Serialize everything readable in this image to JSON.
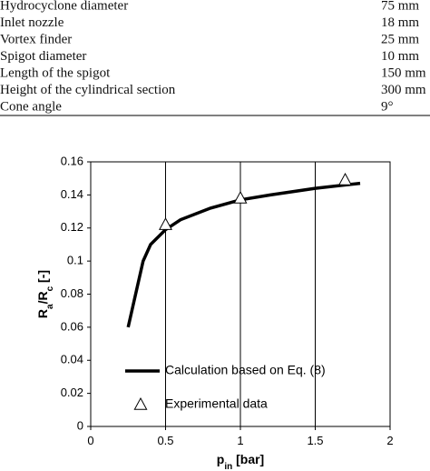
{
  "table": {
    "rows": [
      [
        "Hydrocyclone diameter",
        "75 mm"
      ],
      [
        "Inlet nozzle",
        "18 mm"
      ],
      [
        "Vortex finder",
        "25 mm"
      ],
      [
        "Spigot diameter",
        "10 mm"
      ],
      [
        "Length of the spigot",
        "150 mm"
      ],
      [
        "Height of the cylindrical section",
        "300 mm"
      ],
      [
        "Cone angle",
        "9°"
      ]
    ]
  },
  "chart_data": {
    "type": "line",
    "x_label": [
      "p",
      "in",
      " [bar]"
    ],
    "y_label": [
      "R",
      "a",
      "/R",
      "c",
      " [-]"
    ],
    "xlim": [
      0,
      2
    ],
    "xticks": [
      0,
      0.5,
      1,
      1.5,
      2
    ],
    "ylim": [
      0,
      0.16
    ],
    "yticks": [
      0,
      0.02,
      0.04,
      0.06,
      0.08,
      0.1,
      0.12,
      0.14,
      0.16
    ],
    "grid": "x",
    "legend": "lower left",
    "series": [
      {
        "name": "Calculation based on Eq. (8)",
        "color": "#000000",
        "style": "line",
        "x": [
          0.25,
          0.3,
          0.35,
          0.4,
          0.5,
          0.6,
          0.8,
          1,
          1.2,
          1.5,
          1.8
        ],
        "y": [
          0.06,
          0.08,
          0.1,
          0.11,
          0.119,
          0.125,
          0.132,
          0.137,
          0.14,
          0.144,
          0.147
        ]
      },
      {
        "name": "Experimental data",
        "color": "#000000",
        "style": "marker",
        "x": [
          0.5,
          1,
          1.7
        ],
        "y": [
          0.122,
          0.138,
          0.149
        ]
      }
    ]
  }
}
